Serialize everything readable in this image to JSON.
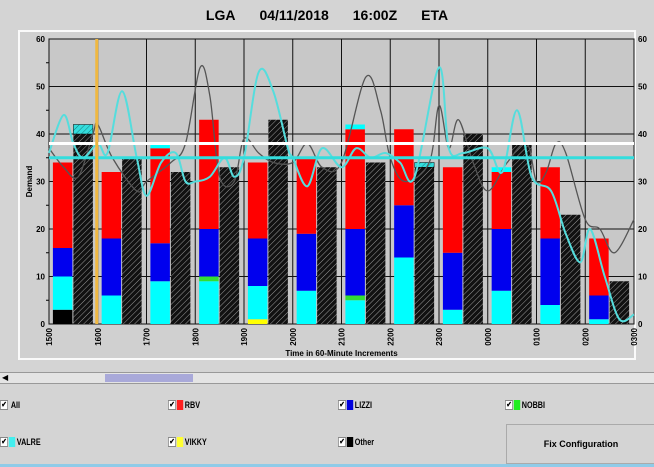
{
  "header": {
    "airport": "LGA",
    "date": "04/11/2018",
    "time": "16:00Z",
    "mode": "ETA"
  },
  "chart_data": {
    "type": "bar",
    "stacked": true,
    "ylabel": "Demand",
    "xlabel": "Time in 60-Minute Increments",
    "ylim": [
      0,
      60
    ],
    "yticks": [
      0,
      10,
      20,
      30,
      40,
      50,
      60
    ],
    "grid": true,
    "categories": [
      "1500",
      "1600",
      "1700",
      "1800",
      "1900",
      "2000",
      "2100",
      "2200",
      "2300",
      "0000",
      "0100",
      "0200",
      "0300"
    ],
    "colors": {
      "Other": "#000000",
      "VIKKY": "#ffff00",
      "VALRE": "#00ffff",
      "NOBBI": "#33dd33",
      "LIZZI": "#0000ee",
      "RBV": "#ff0000"
    },
    "stacked_bars": [
      {
        "Other": 3,
        "VALRE": 7,
        "LIZZI": 6,
        "RBV": 18
      },
      {
        "VALRE": 6,
        "LIZZI": 12,
        "RBV": 14
      },
      {
        "VALRE": 9,
        "LIZZI": 8,
        "RBV": 20,
        "VALRE_top": 1
      },
      {
        "VALRE": 9,
        "NOBBI": 1,
        "LIZZI": 10,
        "RBV": 23
      },
      {
        "VIKKY": 1,
        "VALRE": 7,
        "LIZZI": 10,
        "RBV": 16
      },
      {
        "VALRE": 7,
        "LIZZI": 12,
        "RBV": 16
      },
      {
        "VALRE": 5,
        "NOBBI": 1,
        "LIZZI": 14,
        "RBV": 21,
        "VALRE_top": 1
      },
      {
        "VALRE": 14,
        "LIZZI": 11,
        "RBV": 16
      },
      {
        "VALRE": 3,
        "LIZZI": 12,
        "RBV": 18
      },
      {
        "VALRE": 7,
        "LIZZI": 13,
        "RBV": 12,
        "VALRE_top": 1
      },
      {
        "VALRE": 4,
        "LIZZI": 14,
        "RBV": 15
      },
      {
        "VALRE": 1,
        "LIZZI": 5,
        "RBV": 12
      }
    ],
    "hatched_bars": [
      {
        "v": 40,
        "top": 2
      },
      {
        "v": 35
      },
      {
        "v": 32
      },
      {
        "v": 33
      },
      {
        "v": 43
      },
      {
        "v": 33
      },
      {
        "v": 34
      },
      {
        "v": 33,
        "top": 1
      },
      {
        "v": 40
      },
      {
        "v": 38
      },
      {
        "v": 23
      },
      {
        "v": 9
      }
    ],
    "reference_lines": [
      {
        "value": 38,
        "color": "#ffffff"
      },
      {
        "value": 35,
        "color": "#33dddd"
      }
    ],
    "current_time_marker": {
      "x": "1600",
      "color": "#f0b840"
    },
    "curves": [
      {
        "color": "#555555",
        "points": [
          [
            0,
            37
          ],
          [
            0.3,
            33
          ],
          [
            0.6,
            31
          ],
          [
            0.9,
            40
          ],
          [
            1.0,
            42
          ],
          [
            1.3,
            35
          ],
          [
            1.8,
            28
          ],
          [
            2,
            30
          ],
          [
            2.5,
            34
          ],
          [
            2.8,
            38
          ],
          [
            3.1,
            54
          ],
          [
            3.3,
            48
          ],
          [
            3.5,
            31
          ],
          [
            3.8,
            30
          ],
          [
            4.0,
            39
          ],
          [
            4.3,
            36
          ],
          [
            4.6,
            34
          ],
          [
            5.0,
            34
          ],
          [
            5.3,
            38
          ],
          [
            5.6,
            33
          ],
          [
            6.0,
            34
          ],
          [
            6.5,
            52
          ],
          [
            6.8,
            45
          ],
          [
            7.0,
            35
          ],
          [
            7.3,
            30
          ],
          [
            7.8,
            34
          ],
          [
            8.0,
            46
          ],
          [
            8.2,
            37
          ],
          [
            8.4,
            43
          ],
          [
            8.7,
            34
          ],
          [
            9.0,
            28
          ],
          [
            9.4,
            34
          ],
          [
            9.8,
            38
          ],
          [
            10.0,
            30
          ],
          [
            10.2,
            32
          ],
          [
            10.4,
            38
          ],
          [
            10.6,
            36
          ],
          [
            11.0,
            22
          ],
          [
            11.3,
            20
          ],
          [
            11.6,
            15
          ],
          [
            12,
            22
          ]
        ]
      },
      {
        "color": "#55dddd",
        "points": [
          [
            0,
            36
          ],
          [
            0.3,
            44
          ],
          [
            0.5,
            38
          ],
          [
            0.7,
            35
          ],
          [
            1.0,
            38
          ],
          [
            1.2,
            36
          ],
          [
            1.5,
            49
          ],
          [
            1.8,
            35
          ],
          [
            2,
            27
          ],
          [
            2.3,
            34
          ],
          [
            2.6,
            36
          ],
          [
            2.8,
            30
          ],
          [
            3.0,
            30
          ],
          [
            3.3,
            31
          ],
          [
            3.6,
            35
          ],
          [
            3.8,
            31
          ],
          [
            4.0,
            35
          ],
          [
            4.3,
            53
          ],
          [
            4.6,
            49
          ],
          [
            4.9,
            37
          ],
          [
            5.0,
            35
          ],
          [
            5.3,
            29
          ],
          [
            5.6,
            37
          ],
          [
            6.0,
            33
          ],
          [
            6.3,
            37
          ],
          [
            6.6,
            35
          ],
          [
            6.9,
            36
          ],
          [
            7.2,
            34
          ],
          [
            7.5,
            31
          ],
          [
            8.0,
            54
          ],
          [
            8.2,
            37
          ],
          [
            8.5,
            36
          ],
          [
            9.0,
            37
          ],
          [
            9.3,
            32
          ],
          [
            9.6,
            45
          ],
          [
            9.9,
            31
          ],
          [
            10.3,
            28
          ],
          [
            10.6,
            19
          ],
          [
            10.9,
            13
          ],
          [
            11.1,
            20
          ],
          [
            11.4,
            10
          ],
          [
            11.7,
            1
          ],
          [
            12,
            2
          ]
        ]
      }
    ]
  },
  "legend": {
    "items": [
      {
        "label": "All",
        "checked": true
      },
      {
        "label": "RBV",
        "checked": true,
        "color": "#ff2020"
      },
      {
        "label": "LIZZI",
        "checked": true,
        "color": "#0000dd"
      },
      {
        "label": "NOBBI",
        "checked": true,
        "color": "#22ee22"
      },
      {
        "label": "VALRE",
        "checked": true,
        "color": "#44eeee"
      },
      {
        "label": "VIKKY",
        "checked": true,
        "color": "#ffff33"
      },
      {
        "label": "Other",
        "checked": true,
        "color": "#000000"
      }
    ]
  },
  "buttons": {
    "fix": "Fix Configuration"
  }
}
